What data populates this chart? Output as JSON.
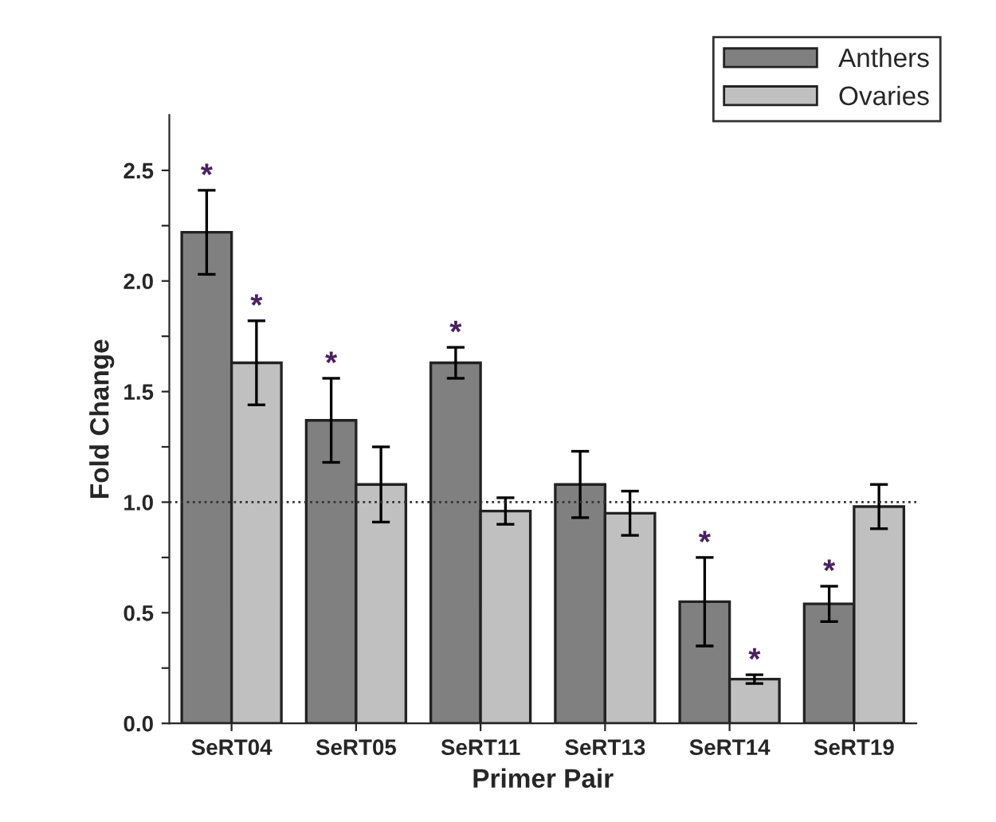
{
  "chart_data": {
    "type": "bar",
    "xlabel": "Primer Pair",
    "ylabel": "Fold Change",
    "categories": [
      "SeRT04",
      "SeRT05",
      "SeRT11",
      "SeRT13",
      "SeRT14",
      "SeRT19"
    ],
    "series": [
      {
        "name": "Anthers",
        "color": "#808080",
        "values": [
          2.22,
          1.37,
          1.63,
          1.08,
          0.55,
          0.54
        ],
        "errors": [
          0.19,
          0.19,
          0.07,
          0.15,
          0.2,
          0.08
        ],
        "value_labels": [
          "*",
          "*",
          "*",
          null,
          "*",
          "*"
        ]
      },
      {
        "name": "Ovaries",
        "color": "#c0c0c0",
        "values": [
          1.63,
          1.08,
          0.96,
          0.95,
          0.2,
          0.98
        ],
        "errors": [
          0.19,
          0.17,
          0.06,
          0.1,
          0.02,
          0.1
        ],
        "value_labels": [
          "*",
          null,
          null,
          null,
          "*",
          null
        ]
      }
    ],
    "ylim": [
      0,
      2.75
    ],
    "yticks": [
      {
        "value": 0,
        "label": "0.0"
      },
      {
        "value": 0.25,
        "label": null
      },
      {
        "value": 0.5,
        "label": "0.5"
      },
      {
        "value": 0.75,
        "label": null
      },
      {
        "value": 1,
        "label": "1.0"
      },
      {
        "value": 1.25,
        "label": null
      },
      {
        "value": 1.5,
        "label": "1.5"
      },
      {
        "value": 1.75,
        "label": null
      },
      {
        "value": 2,
        "label": "2.0"
      },
      {
        "value": 2.25,
        "label": null
      },
      {
        "value": 2.5,
        "label": "2.5"
      }
    ],
    "ref_lines": [
      {
        "axis": "y",
        "value": 1,
        "label": null,
        "color": "#333333",
        "line_style": "dotted"
      }
    ],
    "legend": "top right",
    "grid": false
  }
}
